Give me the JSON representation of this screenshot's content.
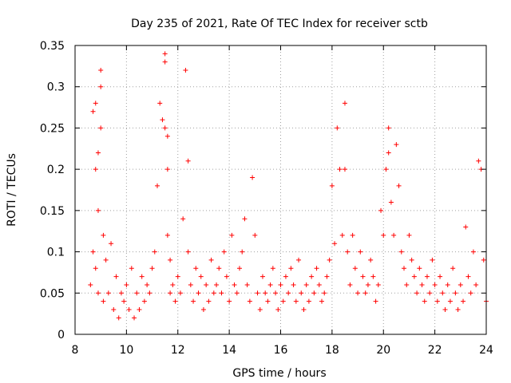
{
  "chart_data": {
    "type": "scatter",
    "title": "Day 235 of 2021, Rate Of TEC Index for receiver sctb",
    "xlabel": "GPS time / hours",
    "ylabel": "ROTI / TECUs",
    "xlim": [
      8,
      24
    ],
    "ylim": [
      0,
      0.35
    ],
    "x_ticks": [
      8,
      10,
      12,
      14,
      16,
      18,
      20,
      22,
      24
    ],
    "x_tick_labels": [
      "8",
      "10",
      "12",
      "14",
      "16",
      "18",
      "20",
      "22",
      "24"
    ],
    "y_ticks": [
      0,
      0.05,
      0.1,
      0.15,
      0.2,
      0.25,
      0.3,
      0.35
    ],
    "y_tick_labels": [
      "0",
      "0.05",
      "0.1",
      "0.15",
      "0.2",
      "0.25",
      "0.3",
      "0.35"
    ],
    "grid": true,
    "marker": "+",
    "color": "#ff0000",
    "series": [
      {
        "name": "ROTI",
        "x": [
          8.6,
          8.7,
          8.7,
          8.8,
          8.8,
          8.8,
          8.9,
          8.9,
          8.9,
          9.0,
          9.0,
          9.0,
          9.1,
          9.1,
          9.2,
          9.3,
          9.4,
          9.5,
          9.6,
          9.7,
          9.8,
          9.9,
          10.0,
          10.1,
          10.2,
          10.3,
          10.4,
          10.5,
          10.6,
          10.7,
          10.8,
          10.9,
          11.0,
          11.1,
          11.2,
          11.3,
          11.4,
          11.5,
          11.5,
          11.5,
          11.6,
          11.6,
          11.6,
          11.7,
          11.7,
          11.8,
          11.9,
          12.0,
          12.1,
          12.2,
          12.3,
          12.4,
          12.4,
          12.5,
          12.6,
          12.7,
          12.8,
          12.9,
          13.0,
          13.1,
          13.2,
          13.3,
          13.4,
          13.5,
          13.6,
          13.7,
          13.8,
          13.9,
          14.0,
          14.1,
          14.2,
          14.3,
          14.4,
          14.5,
          14.6,
          14.7,
          14.8,
          14.9,
          15.0,
          15.1,
          15.2,
          15.3,
          15.4,
          15.5,
          15.6,
          15.7,
          15.8,
          15.9,
          16.0,
          16.1,
          16.2,
          16.3,
          16.4,
          16.5,
          16.6,
          16.7,
          16.8,
          16.9,
          17.0,
          17.1,
          17.2,
          17.3,
          17.4,
          17.5,
          17.6,
          17.7,
          17.8,
          17.9,
          18.0,
          18.1,
          18.2,
          18.3,
          18.4,
          18.5,
          18.5,
          18.6,
          18.7,
          18.8,
          18.9,
          19.0,
          19.1,
          19.2,
          19.3,
          19.4,
          19.5,
          19.6,
          19.7,
          19.8,
          19.9,
          20.0,
          20.1,
          20.2,
          20.2,
          20.3,
          20.4,
          20.5,
          20.6,
          20.7,
          20.8,
          20.9,
          21.0,
          21.1,
          21.2,
          21.3,
          21.4,
          21.5,
          21.6,
          21.7,
          21.8,
          21.9,
          22.0,
          22.1,
          22.2,
          22.3,
          22.4,
          22.5,
          22.6,
          22.7,
          22.8,
          22.9,
          23.0,
          23.1,
          23.2,
          23.3,
          23.4,
          23.5,
          23.6,
          23.7,
          23.8,
          23.9,
          24.0
        ],
        "y": [
          0.06,
          0.27,
          0.1,
          0.28,
          0.2,
          0.08,
          0.22,
          0.15,
          0.05,
          0.32,
          0.3,
          0.25,
          0.12,
          0.04,
          0.09,
          0.05,
          0.11,
          0.03,
          0.07,
          0.02,
          0.05,
          0.04,
          0.06,
          0.03,
          0.08,
          0.02,
          0.05,
          0.03,
          0.07,
          0.04,
          0.06,
          0.05,
          0.08,
          0.1,
          0.18,
          0.28,
          0.26,
          0.25,
          0.34,
          0.33,
          0.24,
          0.2,
          0.12,
          0.09,
          0.05,
          0.06,
          0.04,
          0.07,
          0.05,
          0.14,
          0.32,
          0.21,
          0.1,
          0.06,
          0.04,
          0.08,
          0.05,
          0.07,
          0.03,
          0.06,
          0.04,
          0.09,
          0.05,
          0.06,
          0.08,
          0.05,
          0.1,
          0.07,
          0.04,
          0.12,
          0.06,
          0.05,
          0.08,
          0.1,
          0.14,
          0.06,
          0.04,
          0.19,
          0.12,
          0.05,
          0.03,
          0.07,
          0.05,
          0.04,
          0.06,
          0.08,
          0.05,
          0.03,
          0.06,
          0.04,
          0.07,
          0.05,
          0.08,
          0.06,
          0.04,
          0.09,
          0.05,
          0.03,
          0.06,
          0.04,
          0.07,
          0.05,
          0.08,
          0.06,
          0.04,
          0.05,
          0.07,
          0.09,
          0.18,
          0.11,
          0.25,
          0.2,
          0.12,
          0.28,
          0.2,
          0.1,
          0.06,
          0.12,
          0.08,
          0.05,
          0.1,
          0.07,
          0.05,
          0.06,
          0.09,
          0.07,
          0.04,
          0.06,
          0.15,
          0.12,
          0.2,
          0.25,
          0.22,
          0.16,
          0.12,
          0.23,
          0.18,
          0.1,
          0.08,
          0.06,
          0.12,
          0.09,
          0.07,
          0.05,
          0.08,
          0.06,
          0.04,
          0.07,
          0.05,
          0.09,
          0.06,
          0.04,
          0.07,
          0.05,
          0.03,
          0.06,
          0.04,
          0.08,
          0.05,
          0.03,
          0.06,
          0.04,
          0.13,
          0.07,
          0.05,
          0.1,
          0.06,
          0.21,
          0.2,
          0.09,
          0.04
        ]
      }
    ]
  }
}
